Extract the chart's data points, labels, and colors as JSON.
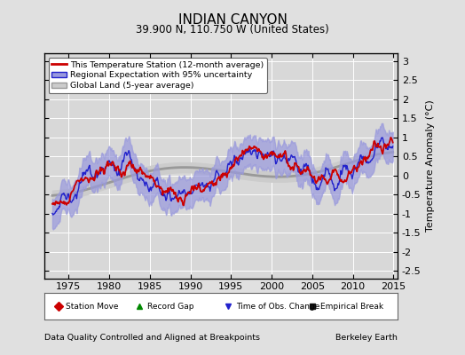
{
  "title": "INDIAN CANYON",
  "subtitle": "39.900 N, 110.750 W (United States)",
  "ylabel": "Temperature Anomaly (°C)",
  "xlabel_left": "Data Quality Controlled and Aligned at Breakpoints",
  "xlabel_right": "Berkeley Earth",
  "ylim": [
    -2.7,
    3.2
  ],
  "xlim": [
    1972.0,
    2015.5
  ],
  "yticks": [
    -2.5,
    -2,
    -1.5,
    -1,
    -0.5,
    0,
    0.5,
    1,
    1.5,
    2,
    2.5,
    3
  ],
  "xticks": [
    1975,
    1980,
    1985,
    1990,
    1995,
    2000,
    2005,
    2010,
    2015
  ],
  "bg_color": "#e0e0e0",
  "plot_bg_color": "#d8d8d8",
  "grid_color": "#ffffff",
  "station_color": "#cc0000",
  "regional_color": "#2222cc",
  "regional_fill": "#9999dd",
  "global_color": "#999999",
  "global_fill": "#cccccc",
  "legend_labels": [
    "This Temperature Station (12-month average)",
    "Regional Expectation with 95% uncertainty",
    "Global Land (5-year average)"
  ],
  "bottom_legend": [
    "Station Move",
    "Record Gap",
    "Time of Obs. Change",
    "Empirical Break"
  ],
  "bottom_legend_colors": [
    "#cc0000",
    "#008800",
    "#2222cc",
    "#111111"
  ],
  "bottom_legend_markers": [
    "D",
    "^",
    "v",
    "s"
  ]
}
